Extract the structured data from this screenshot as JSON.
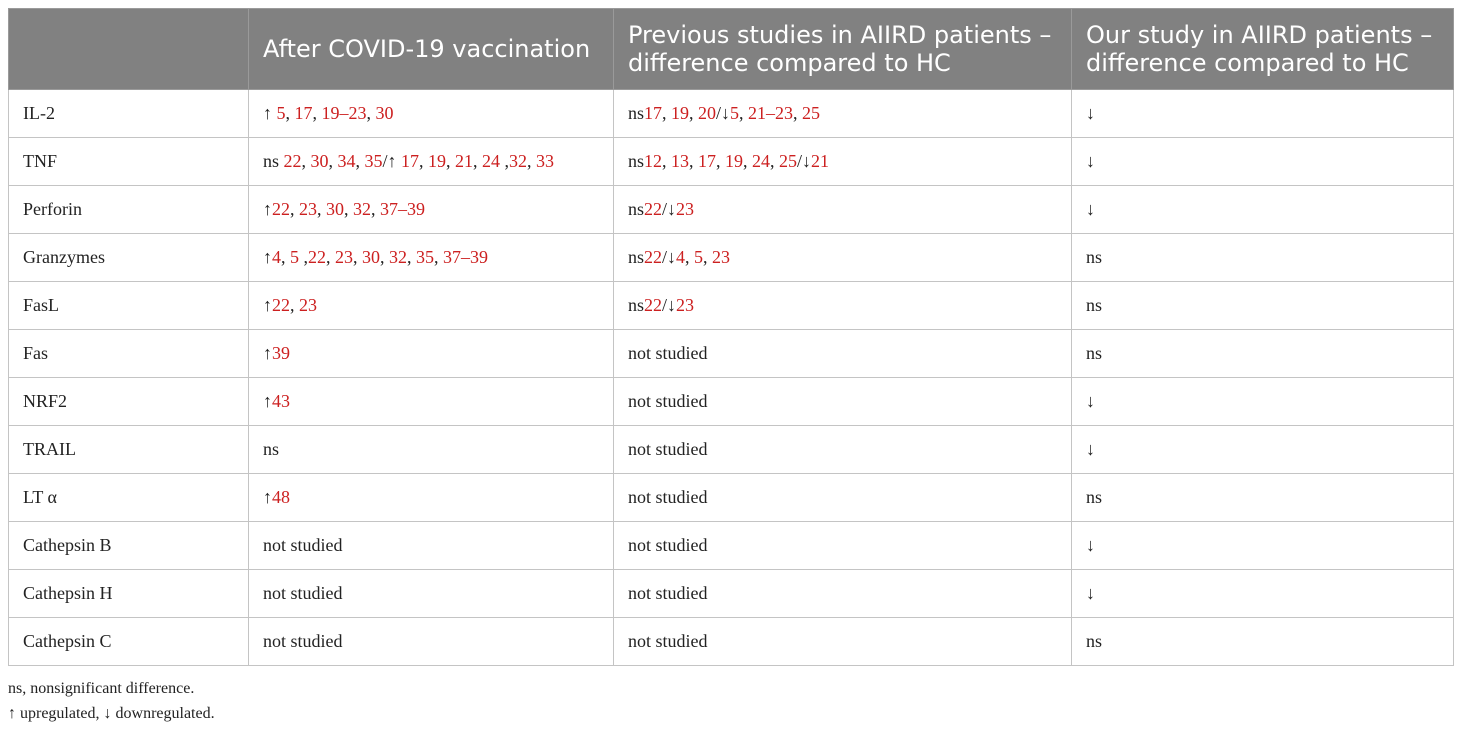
{
  "table": {
    "headers": [
      "",
      "After COVID-19 vaccination",
      "Previous studies in AIIRD patients – difference compared to HC",
      "Our study in AIIRD patients – difference compared to HC"
    ],
    "rows": [
      {
        "marker": "IL-2",
        "after_vaccination": [
          {
            "t": "↑ "
          },
          {
            "t": "5",
            "r": 1
          },
          {
            "t": ", "
          },
          {
            "t": "17",
            "r": 1
          },
          {
            "t": ", "
          },
          {
            "t": "19–23",
            "r": 1
          },
          {
            "t": ", "
          },
          {
            "t": "30",
            "r": 1
          }
        ],
        "previous_studies": [
          {
            "t": "ns"
          },
          {
            "t": "17",
            "r": 1
          },
          {
            "t": ", "
          },
          {
            "t": "19",
            "r": 1
          },
          {
            "t": ", "
          },
          {
            "t": "20",
            "r": 1
          },
          {
            "t": "/↓"
          },
          {
            "t": "5",
            "r": 1
          },
          {
            "t": ", "
          },
          {
            "t": "21–23",
            "r": 1
          },
          {
            "t": ", "
          },
          {
            "t": "25",
            "r": 1
          }
        ],
        "our_study": "↓"
      },
      {
        "marker": "TNF",
        "after_vaccination": [
          {
            "t": "ns "
          },
          {
            "t": "22",
            "r": 1
          },
          {
            "t": ", "
          },
          {
            "t": "30",
            "r": 1
          },
          {
            "t": ", "
          },
          {
            "t": "34",
            "r": 1
          },
          {
            "t": ", "
          },
          {
            "t": "35",
            "r": 1
          },
          {
            "t": "/↑ "
          },
          {
            "t": "17",
            "r": 1
          },
          {
            "t": ", "
          },
          {
            "t": "19",
            "r": 1
          },
          {
            "t": ", "
          },
          {
            "t": "21",
            "r": 1
          },
          {
            "t": ", "
          },
          {
            "t": "24",
            "r": 1
          },
          {
            "t": " ,"
          },
          {
            "t": "32",
            "r": 1
          },
          {
            "t": ", "
          },
          {
            "t": "33",
            "r": 1
          }
        ],
        "previous_studies": [
          {
            "t": "ns"
          },
          {
            "t": "12",
            "r": 1
          },
          {
            "t": ", "
          },
          {
            "t": "13",
            "r": 1
          },
          {
            "t": ", "
          },
          {
            "t": "17",
            "r": 1
          },
          {
            "t": ", "
          },
          {
            "t": "19",
            "r": 1
          },
          {
            "t": ", "
          },
          {
            "t": "24",
            "r": 1
          },
          {
            "t": ", "
          },
          {
            "t": "25",
            "r": 1
          },
          {
            "t": "/↓"
          },
          {
            "t": "21",
            "r": 1
          }
        ],
        "our_study": "↓"
      },
      {
        "marker": "Perforin",
        "after_vaccination": [
          {
            "t": "↑"
          },
          {
            "t": "22",
            "r": 1
          },
          {
            "t": ", "
          },
          {
            "t": "23",
            "r": 1
          },
          {
            "t": ", "
          },
          {
            "t": "30",
            "r": 1
          },
          {
            "t": ", "
          },
          {
            "t": "32",
            "r": 1
          },
          {
            "t": ", "
          },
          {
            "t": "37–39",
            "r": 1
          }
        ],
        "previous_studies": [
          {
            "t": "ns"
          },
          {
            "t": "22",
            "r": 1
          },
          {
            "t": "/↓"
          },
          {
            "t": "23",
            "r": 1
          }
        ],
        "our_study": "↓"
      },
      {
        "marker": "Granzymes",
        "after_vaccination": [
          {
            "t": "↑"
          },
          {
            "t": "4",
            "r": 1
          },
          {
            "t": ", "
          },
          {
            "t": "5",
            "r": 1
          },
          {
            "t": " ,"
          },
          {
            "t": "22",
            "r": 1
          },
          {
            "t": ", "
          },
          {
            "t": "23",
            "r": 1
          },
          {
            "t": ", "
          },
          {
            "t": "30",
            "r": 1
          },
          {
            "t": ", "
          },
          {
            "t": "32",
            "r": 1
          },
          {
            "t": ", "
          },
          {
            "t": "35",
            "r": 1
          },
          {
            "t": ", "
          },
          {
            "t": "37–39",
            "r": 1
          }
        ],
        "previous_studies": [
          {
            "t": "ns"
          },
          {
            "t": "22",
            "r": 1
          },
          {
            "t": "/↓"
          },
          {
            "t": "4",
            "r": 1
          },
          {
            "t": ", "
          },
          {
            "t": "5",
            "r": 1
          },
          {
            "t": ", "
          },
          {
            "t": "23",
            "r": 1
          }
        ],
        "our_study": "ns"
      },
      {
        "marker": "FasL",
        "after_vaccination": [
          {
            "t": "↑"
          },
          {
            "t": "22",
            "r": 1
          },
          {
            "t": ", "
          },
          {
            "t": "23",
            "r": 1
          }
        ],
        "previous_studies": [
          {
            "t": "ns"
          },
          {
            "t": "22",
            "r": 1
          },
          {
            "t": "/↓"
          },
          {
            "t": "23",
            "r": 1
          }
        ],
        "our_study": "ns"
      },
      {
        "marker": "Fas",
        "after_vaccination": [
          {
            "t": "↑"
          },
          {
            "t": "39",
            "r": 1
          }
        ],
        "previous_studies": [
          {
            "t": "not studied"
          }
        ],
        "our_study": "ns"
      },
      {
        "marker": "NRF2",
        "after_vaccination": [
          {
            "t": "↑"
          },
          {
            "t": "43",
            "r": 1
          }
        ],
        "previous_studies": [
          {
            "t": "not studied"
          }
        ],
        "our_study": "↓"
      },
      {
        "marker": "TRAIL",
        "after_vaccination": [
          {
            "t": "ns"
          }
        ],
        "previous_studies": [
          {
            "t": "not studied"
          }
        ],
        "our_study": "↓"
      },
      {
        "marker": "LT α",
        "after_vaccination": [
          {
            "t": "↑"
          },
          {
            "t": "48",
            "r": 1
          }
        ],
        "previous_studies": [
          {
            "t": "not studied"
          }
        ],
        "our_study": "ns"
      },
      {
        "marker": "Cathepsin B",
        "after_vaccination": [
          {
            "t": "not studied"
          }
        ],
        "previous_studies": [
          {
            "t": "not studied"
          }
        ],
        "our_study": "↓"
      },
      {
        "marker": "Cathepsin H",
        "after_vaccination": [
          {
            "t": "not studied"
          }
        ],
        "previous_studies": [
          {
            "t": "not studied"
          }
        ],
        "our_study": "↓"
      },
      {
        "marker": "Cathepsin C",
        "after_vaccination": [
          {
            "t": "not studied"
          }
        ],
        "previous_studies": [
          {
            "t": "not studied"
          }
        ],
        "our_study": "ns"
      }
    ]
  },
  "footnotes": [
    "ns, nonsignificant difference.",
    "↑ upregulated, ↓ downregulated."
  ],
  "colors": {
    "header_bg": "#818181",
    "reference": "#cc2020"
  }
}
